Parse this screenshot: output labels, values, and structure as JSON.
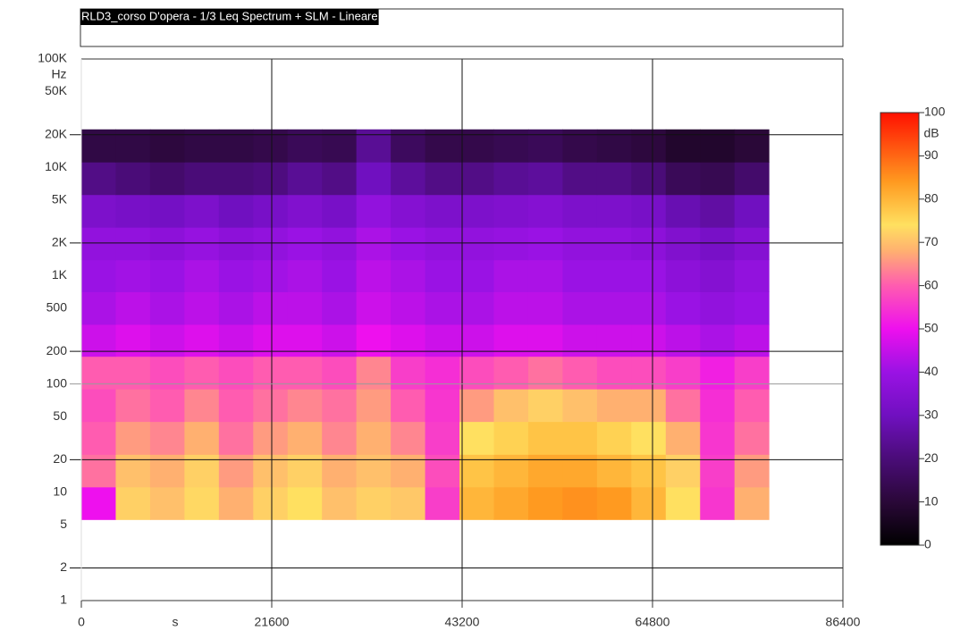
{
  "chart_data": {
    "type": "spectrogram",
    "title": "RLD3_corso D'opera - 1/3 Leq Spectrum + SLM - Lineare",
    "x_label": "s",
    "y_label": "Hz",
    "colorbar_label": "dB",
    "xlim": [
      0,
      86400
    ],
    "xticks": [
      0,
      21600,
      43200,
      64800,
      86400
    ],
    "x_grid_lines": [
      21600,
      43200,
      64800
    ],
    "ylim": [
      1,
      100000
    ],
    "y_log": true,
    "yticks": [
      1,
      2,
      5,
      10,
      20,
      50,
      100,
      200,
      500,
      {
        "value": 1000,
        "label": "1K"
      },
      {
        "value": 2000,
        "label": "2K"
      },
      {
        "value": 5000,
        "label": "5K"
      },
      {
        "value": 10000,
        "label": "10K"
      },
      {
        "value": 20000,
        "label": "20K"
      },
      {
        "value": 50000,
        "label": "50K"
      },
      {
        "value": 100000,
        "label": "100K"
      }
    ],
    "y_grid_lines": [
      2,
      20,
      100,
      200,
      2000,
      20000
    ],
    "clim": [
      0,
      100
    ],
    "cticks": [
      0,
      10,
      20,
      30,
      40,
      50,
      60,
      70,
      80,
      90,
      100
    ],
    "colorscale": [
      [
        0,
        "#000000"
      ],
      [
        10,
        "#2a0838"
      ],
      [
        20,
        "#4a0c78"
      ],
      [
        30,
        "#7010c0"
      ],
      [
        40,
        "#9a12e4"
      ],
      [
        50,
        "#ee10ee"
      ],
      [
        60,
        "#ff5cb0"
      ],
      [
        68,
        "#ffb070"
      ],
      [
        74,
        "#ffe060"
      ],
      [
        84,
        "#ff9a20"
      ],
      [
        100,
        "#ff1000"
      ]
    ],
    "time_bins": [
      0,
      3900,
      7800,
      11700,
      15600,
      19500,
      23400,
      27300,
      31200,
      35100,
      39000,
      42900,
      46800,
      50700,
      54600,
      58500,
      62400,
      66300,
      70200,
      74100,
      78000
    ],
    "freq_bins": [
      5.6,
      11.2,
      22.4,
      45,
      90,
      180,
      355,
      710,
      1400,
      2800,
      5600,
      11200,
      22400
    ],
    "values": [
      [
        50,
        72,
        70,
        73,
        68,
        72,
        74,
        70,
        72,
        71,
        56,
        80,
        82,
        84,
        85,
        84,
        80,
        74,
        55,
        68
      ],
      [
        62,
        70,
        68,
        72,
        66,
        70,
        72,
        68,
        70,
        68,
        58,
        78,
        80,
        82,
        82,
        80,
        78,
        72,
        56,
        66
      ],
      [
        60,
        66,
        64,
        68,
        62,
        66,
        68,
        64,
        68,
        64,
        56,
        74,
        76,
        78,
        78,
        76,
        74,
        68,
        55,
        62
      ],
      [
        58,
        62,
        60,
        64,
        60,
        62,
        64,
        62,
        66,
        60,
        55,
        66,
        70,
        72,
        70,
        68,
        68,
        62,
        54,
        60
      ],
      [
        60,
        60,
        58,
        60,
        58,
        60,
        60,
        58,
        64,
        56,
        54,
        58,
        60,
        62,
        60,
        58,
        58,
        56,
        52,
        56
      ],
      [
        46,
        48,
        46,
        48,
        46,
        48,
        48,
        46,
        50,
        48,
        46,
        46,
        48,
        48,
        46,
        46,
        46,
        44,
        42,
        44
      ],
      [
        42,
        44,
        42,
        44,
        42,
        44,
        44,
        42,
        46,
        44,
        42,
        42,
        44,
        44,
        42,
        42,
        42,
        40,
        38,
        40
      ],
      [
        40,
        41,
        40,
        42,
        40,
        41,
        42,
        40,
        44,
        42,
        40,
        40,
        42,
        42,
        40,
        40,
        40,
        37,
        35,
        38
      ],
      [
        38,
        38,
        37,
        39,
        37,
        38,
        40,
        38,
        42,
        40,
        38,
        38,
        39,
        40,
        38,
        38,
        37,
        34,
        32,
        35
      ],
      [
        33,
        32,
        31,
        33,
        30,
        32,
        34,
        32,
        38,
        35,
        33,
        33,
        34,
        35,
        33,
        33,
        32,
        28,
        26,
        30
      ],
      [
        22,
        20,
        18,
        20,
        20,
        21,
        24,
        22,
        30,
        25,
        22,
        22,
        24,
        25,
        22,
        22,
        20,
        15,
        14,
        18
      ],
      [
        12,
        12,
        11,
        12,
        12,
        13,
        15,
        14,
        24,
        16,
        13,
        13,
        14,
        15,
        13,
        12,
        11,
        8,
        8,
        10
      ]
    ]
  }
}
